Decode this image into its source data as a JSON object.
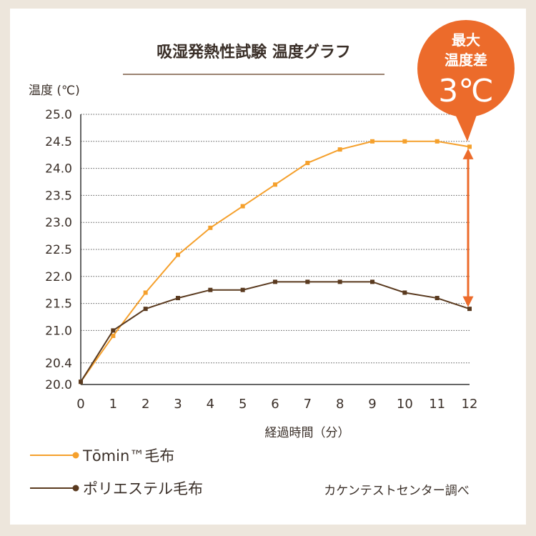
{
  "colors": {
    "tomin": "#f5a02c",
    "polyester": "#5a3a1f",
    "badge": "#ec6b2b",
    "diff_arrow": "#ec6b2b",
    "grid": "#5a5a5a",
    "text": "#3a2f28",
    "background": "#ede6dc"
  },
  "chart_data": {
    "type": "line",
    "title": "吸湿発熱性試験 温度グラフ",
    "ylabel": "温度 (℃)",
    "xlabel": "経過時間（分）",
    "x": [
      0,
      1,
      2,
      3,
      4,
      5,
      6,
      7,
      8,
      9,
      10,
      11,
      12
    ],
    "x_ticks": [
      "0",
      "1",
      "2",
      "3",
      "4",
      "5",
      "6",
      "7",
      "8",
      "9",
      "10",
      "11",
      "12"
    ],
    "xlim": [
      0,
      12
    ],
    "y_ticks": [
      20.0,
      20.4,
      21.0,
      21.5,
      22.0,
      22.5,
      23.0,
      23.5,
      24.0,
      24.5,
      25.0
    ],
    "y_tick_labels": [
      "20.0",
      "20.4",
      "21.0",
      "21.5",
      "22.0",
      "22.5",
      "23.0",
      "23.5",
      "24.0",
      "24.5",
      "25.0"
    ],
    "ylim": [
      20.0,
      25.0
    ],
    "grid": true,
    "series": [
      {
        "name": "Tōmin™毛布",
        "values": [
          20.05,
          20.9,
          21.7,
          22.4,
          22.9,
          23.3,
          23.7,
          24.1,
          24.35,
          24.5,
          24.5,
          24.5,
          24.4
        ]
      },
      {
        "name": "ポリエステル毛布",
        "values": [
          20.05,
          21.0,
          21.4,
          21.6,
          21.75,
          21.75,
          21.9,
          21.9,
          21.9,
          21.9,
          21.7,
          21.6,
          21.4
        ]
      }
    ],
    "legend_position": "bottom-left",
    "badge": {
      "line1": "最大",
      "line2": "温度差",
      "value": "3℃"
    },
    "source_note": "カケンテストセンター調べ"
  }
}
